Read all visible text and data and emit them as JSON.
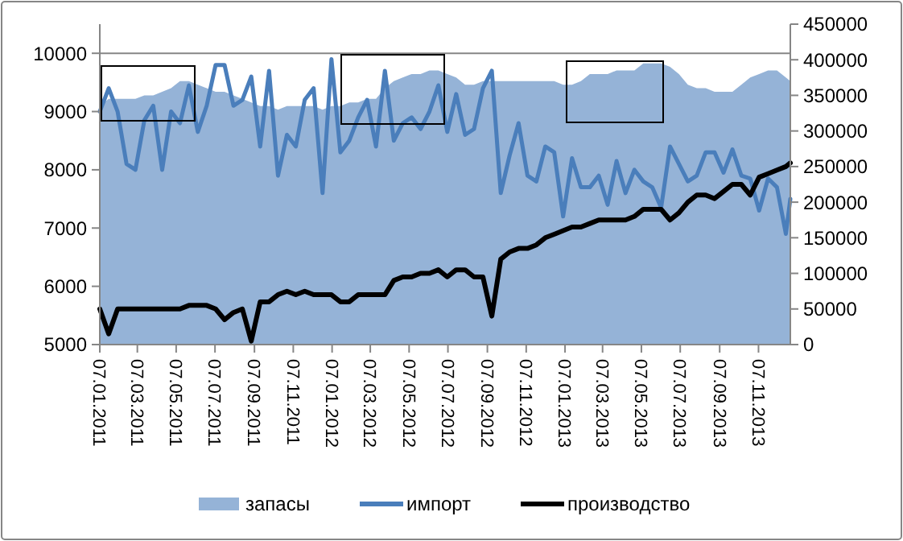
{
  "chart_data": {
    "type": "line",
    "x": [
      "2011-01-07",
      "2011-01-21",
      "2011-02-04",
      "2011-02-18",
      "2011-03-04",
      "2011-03-18",
      "2011-04-01",
      "2011-04-15",
      "2011-04-29",
      "2011-05-13",
      "2011-05-27",
      "2011-06-10",
      "2011-06-24",
      "2011-07-08",
      "2011-07-22",
      "2011-08-05",
      "2011-08-19",
      "2011-09-02",
      "2011-09-16",
      "2011-09-30",
      "2011-10-14",
      "2011-10-28",
      "2011-11-11",
      "2011-11-25",
      "2011-12-09",
      "2011-12-23",
      "2012-01-06",
      "2012-01-20",
      "2012-02-03",
      "2012-02-17",
      "2012-03-02",
      "2012-03-16",
      "2012-03-30",
      "2012-04-13",
      "2012-04-27",
      "2012-05-11",
      "2012-05-25",
      "2012-06-08",
      "2012-06-22",
      "2012-07-06",
      "2012-07-20",
      "2012-08-03",
      "2012-08-17",
      "2012-08-31",
      "2012-09-14",
      "2012-09-28",
      "2012-10-12",
      "2012-10-26",
      "2012-11-09",
      "2012-11-23",
      "2012-12-07",
      "2012-12-21",
      "2013-01-04",
      "2013-01-18",
      "2013-02-01",
      "2013-02-15",
      "2013-03-01",
      "2013-03-15",
      "2013-03-29",
      "2013-04-12",
      "2013-04-26",
      "2013-05-10",
      "2013-05-24",
      "2013-06-07",
      "2013-06-21",
      "2013-07-05",
      "2013-07-19",
      "2013-08-02",
      "2013-08-16",
      "2013-08-30",
      "2013-09-13",
      "2013-09-27",
      "2013-10-11",
      "2013-10-25",
      "2013-11-08",
      "2013-11-22",
      "2013-12-06",
      "2013-12-20",
      "2013-12-27"
    ],
    "series": [
      {
        "name": "запасы",
        "type": "area",
        "axis": "y2",
        "color": "#95b3d7",
        "values": [
          335000,
          345000,
          345000,
          345000,
          345000,
          350000,
          350000,
          355000,
          360000,
          370000,
          370000,
          365000,
          360000,
          355000,
          355000,
          350000,
          345000,
          340000,
          335000,
          335000,
          330000,
          335000,
          335000,
          335000,
          335000,
          330000,
          335000,
          335000,
          340000,
          340000,
          345000,
          345000,
          360000,
          370000,
          375000,
          380000,
          380000,
          385000,
          385000,
          380000,
          375000,
          365000,
          365000,
          370000,
          370000,
          370000,
          370000,
          370000,
          370000,
          370000,
          370000,
          370000,
          365000,
          365000,
          370000,
          380000,
          380000,
          380000,
          385000,
          385000,
          385000,
          395000,
          395000,
          395000,
          390000,
          380000,
          365000,
          360000,
          360000,
          355000,
          355000,
          355000,
          365000,
          375000,
          380000,
          385000,
          385000,
          375000,
          370000
        ]
      },
      {
        "name": "импорт",
        "axis": "y",
        "color": "#4a7ebb",
        "values": [
          9000,
          9400,
          9000,
          8100,
          8000,
          8850,
          9100,
          8000,
          9000,
          8800,
          9450,
          8650,
          9100,
          9800,
          9800,
          9100,
          9200,
          9600,
          8400,
          9700,
          7900,
          8600,
          8400,
          9200,
          9400,
          7600,
          9900,
          8300,
          8500,
          8900,
          9200,
          8400,
          9700,
          8500,
          8800,
          8900,
          8700,
          9000,
          9450,
          8650,
          9300,
          8600,
          8700,
          9400,
          9700,
          7600,
          8250,
          8800,
          7900,
          7800,
          8400,
          8300,
          7200,
          8200,
          7700,
          7700,
          7900,
          7400,
          8150,
          7600,
          8000,
          7800,
          7700,
          7350,
          8400,
          8100,
          7800,
          7900,
          8300,
          8300,
          7950,
          8350,
          7900,
          7850,
          7300,
          7850,
          7700,
          6900,
          7500
        ]
      },
      {
        "name": "производство",
        "axis": "y2",
        "color": "#000000",
        "values": [
          50000,
          15000,
          50000,
          50000,
          50000,
          50000,
          50000,
          50000,
          50000,
          50000,
          55000,
          55000,
          55000,
          50000,
          35000,
          45000,
          50000,
          5000,
          60000,
          60000,
          70000,
          75000,
          70000,
          75000,
          70000,
          70000,
          70000,
          60000,
          60000,
          70000,
          70000,
          70000,
          70000,
          90000,
          95000,
          95000,
          100000,
          100000,
          105000,
          95000,
          105000,
          105000,
          95000,
          95000,
          40000,
          120000,
          130000,
          135000,
          135000,
          140000,
          150000,
          155000,
          160000,
          165000,
          165000,
          170000,
          175000,
          175000,
          175000,
          175000,
          180000,
          190000,
          190000,
          190000,
          175000,
          185000,
          200000,
          210000,
          210000,
          205000,
          215000,
          225000,
          225000,
          210000,
          235000,
          240000,
          245000,
          250000,
          255000
        ]
      }
    ],
    "xlim": [
      "2011-01-07",
      "2013-12-27"
    ],
    "xticks": [
      {
        "value": "2011-01-07",
        "label": "07.01.2011"
      },
      {
        "value": "2011-03-07",
        "label": "07.03.2011"
      },
      {
        "value": "2011-05-07",
        "label": "07.05.2011"
      },
      {
        "value": "2011-07-07",
        "label": "07.07.2011"
      },
      {
        "value": "2011-09-07",
        "label": "07.09.2011"
      },
      {
        "value": "2011-11-07",
        "label": "07.11.2011"
      },
      {
        "value": "2012-01-07",
        "label": "07.01.2012"
      },
      {
        "value": "2012-03-07",
        "label": "07.03.2012"
      },
      {
        "value": "2012-05-07",
        "label": "07.05.2012"
      },
      {
        "value": "2012-07-07",
        "label": "07.07.2012"
      },
      {
        "value": "2012-09-07",
        "label": "07.09.2012"
      },
      {
        "value": "2012-11-07",
        "label": "07.11.2012"
      },
      {
        "value": "2013-01-07",
        "label": "07.01.2013"
      },
      {
        "value": "2013-03-07",
        "label": "07.03.2013"
      },
      {
        "value": "2013-05-07",
        "label": "07.05.2013"
      },
      {
        "value": "2013-07-07",
        "label": "07.07.2013"
      },
      {
        "value": "2013-09-07",
        "label": "07.09.2013"
      },
      {
        "value": "2013-11-07",
        "label": "07.11.2013"
      }
    ],
    "ylim": [
      5000,
      10500
    ],
    "yticks": [
      5000,
      6000,
      7000,
      8000,
      9000,
      10000
    ],
    "y2lim": [
      0,
      450000
    ],
    "y2ticks": [
      0,
      50000,
      100000,
      150000,
      200000,
      250000,
      300000,
      350000,
      400000,
      450000
    ],
    "grid": "y",
    "legend": "bottom",
    "line_style": "solid",
    "marker": "none"
  }
}
